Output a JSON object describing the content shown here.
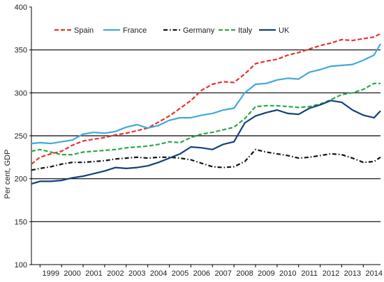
{
  "chart_data": {
    "type": "line",
    "ylabel": "Per cent, GDP",
    "xlabel": "",
    "ylim": [
      100,
      400
    ],
    "yticks": [
      "100",
      "150",
      "200",
      "250",
      "300",
      "350",
      "400"
    ],
    "ytick_values": [
      100,
      150,
      200,
      250,
      300,
      350,
      400
    ],
    "xticks": [
      "1999",
      "2000",
      "2001",
      "2002",
      "2003",
      "2004",
      "2005",
      "2006",
      "2007",
      "2008",
      "2009",
      "2010",
      "2011",
      "2012",
      "2013",
      "2014"
    ],
    "xlim": [
      1998.6,
      2014.8
    ],
    "grid": "horizontal major lines at 150, 250, 350 and baseline",
    "legend": "top",
    "series": [
      {
        "name": "Spain",
        "color": "#e8312c",
        "dash": "dashed",
        "x": [
          1998.6,
          1999.0,
          1999.5,
          2000.0,
          2000.5,
          2001.0,
          2001.5,
          2002.0,
          2002.5,
          2003.0,
          2003.5,
          2004.0,
          2004.5,
          2005.0,
          2005.5,
          2006.0,
          2006.5,
          2007.0,
          2007.5,
          2008.0,
          2008.5,
          2009.0,
          2009.5,
          2010.0,
          2010.5,
          2011.0,
          2011.5,
          2012.0,
          2012.5,
          2013.0,
          2013.5,
          2014.0,
          2014.5,
          2014.8
        ],
        "y": [
          217,
          225,
          229,
          232,
          239,
          244,
          246,
          248,
          251,
          253,
          256,
          259,
          266,
          273,
          282,
          291,
          303,
          310,
          313,
          312,
          322,
          334,
          337,
          339,
          344,
          347,
          351,
          355,
          358,
          362,
          361,
          363,
          365,
          369
        ]
      },
      {
        "name": "France",
        "color": "#41a8dc",
        "dash": "solid",
        "x": [
          1998.6,
          1999.0,
          1999.5,
          2000.0,
          2000.5,
          2001.0,
          2001.5,
          2002.0,
          2002.5,
          2003.0,
          2003.5,
          2004.0,
          2004.5,
          2005.0,
          2005.5,
          2006.0,
          2006.5,
          2007.0,
          2007.5,
          2008.0,
          2008.5,
          2009.0,
          2009.5,
          2010.0,
          2010.5,
          2011.0,
          2011.5,
          2012.0,
          2012.5,
          2013.0,
          2013.5,
          2014.0,
          2014.5,
          2014.8
        ],
        "y": [
          241,
          242,
          241,
          243,
          245,
          252,
          254,
          253,
          255,
          260,
          263,
          259,
          262,
          268,
          271,
          271,
          274,
          276,
          280,
          282,
          300,
          310,
          311,
          315,
          317,
          316,
          324,
          327,
          331,
          332,
          333,
          338,
          344,
          357
        ]
      },
      {
        "name": "Germany",
        "color": "#111111",
        "dash": "dashdot",
        "x": [
          1998.6,
          1999.0,
          1999.5,
          2000.0,
          2000.5,
          2001.0,
          2001.5,
          2002.0,
          2002.5,
          2003.0,
          2003.5,
          2004.0,
          2004.5,
          2005.0,
          2005.5,
          2006.0,
          2006.5,
          2007.0,
          2007.5,
          2008.0,
          2008.5,
          2009.0,
          2009.5,
          2010.0,
          2010.5,
          2011.0,
          2011.5,
          2012.0,
          2012.5,
          2013.0,
          2013.5,
          2014.0,
          2014.5,
          2014.8
        ],
        "y": [
          210,
          212,
          214,
          217,
          219,
          219,
          220,
          221,
          223,
          224,
          225,
          224,
          225,
          225,
          224,
          222,
          218,
          214,
          213,
          214,
          220,
          234,
          231,
          229,
          227,
          224,
          225,
          227,
          229,
          228,
          224,
          219,
          220,
          225
        ]
      },
      {
        "name": "Italy",
        "color": "#2aa84a",
        "dash": "dashed",
        "x": [
          1998.6,
          1999.0,
          1999.5,
          2000.0,
          2000.5,
          2001.0,
          2001.5,
          2002.0,
          2002.5,
          2003.0,
          2003.5,
          2004.0,
          2004.5,
          2005.0,
          2005.5,
          2006.0,
          2006.5,
          2007.0,
          2007.5,
          2008.0,
          2008.5,
          2009.0,
          2009.5,
          2010.0,
          2010.5,
          2011.0,
          2011.5,
          2012.0,
          2012.5,
          2013.0,
          2013.5,
          2014.0,
          2014.5,
          2014.8
        ],
        "y": [
          232,
          234,
          231,
          228,
          228,
          231,
          232,
          233,
          234,
          236,
          237,
          238,
          240,
          243,
          242,
          248,
          252,
          254,
          257,
          260,
          270,
          284,
          285,
          285,
          284,
          283,
          284,
          287,
          292,
          298,
          300,
          304,
          311,
          311
        ]
      },
      {
        "name": "UK",
        "color": "#14407a",
        "dash": "solid",
        "x": [
          1998.6,
          1999.0,
          1999.5,
          2000.0,
          2000.5,
          2001.0,
          2001.5,
          2002.0,
          2002.5,
          2003.0,
          2003.5,
          2004.0,
          2004.5,
          2005.0,
          2005.5,
          2006.0,
          2006.5,
          2007.0,
          2007.5,
          2008.0,
          2008.5,
          2009.0,
          2009.5,
          2010.0,
          2010.5,
          2011.0,
          2011.5,
          2012.0,
          2012.5,
          2013.0,
          2013.5,
          2014.0,
          2014.5,
          2014.8
        ],
        "y": [
          194,
          197,
          197,
          198,
          201,
          203,
          206,
          209,
          213,
          212,
          213,
          215,
          219,
          224,
          229,
          237,
          236,
          234,
          240,
          243,
          265,
          273,
          277,
          280,
          276,
          275,
          282,
          286,
          291,
          289,
          280,
          274,
          271,
          279
        ]
      }
    ]
  }
}
